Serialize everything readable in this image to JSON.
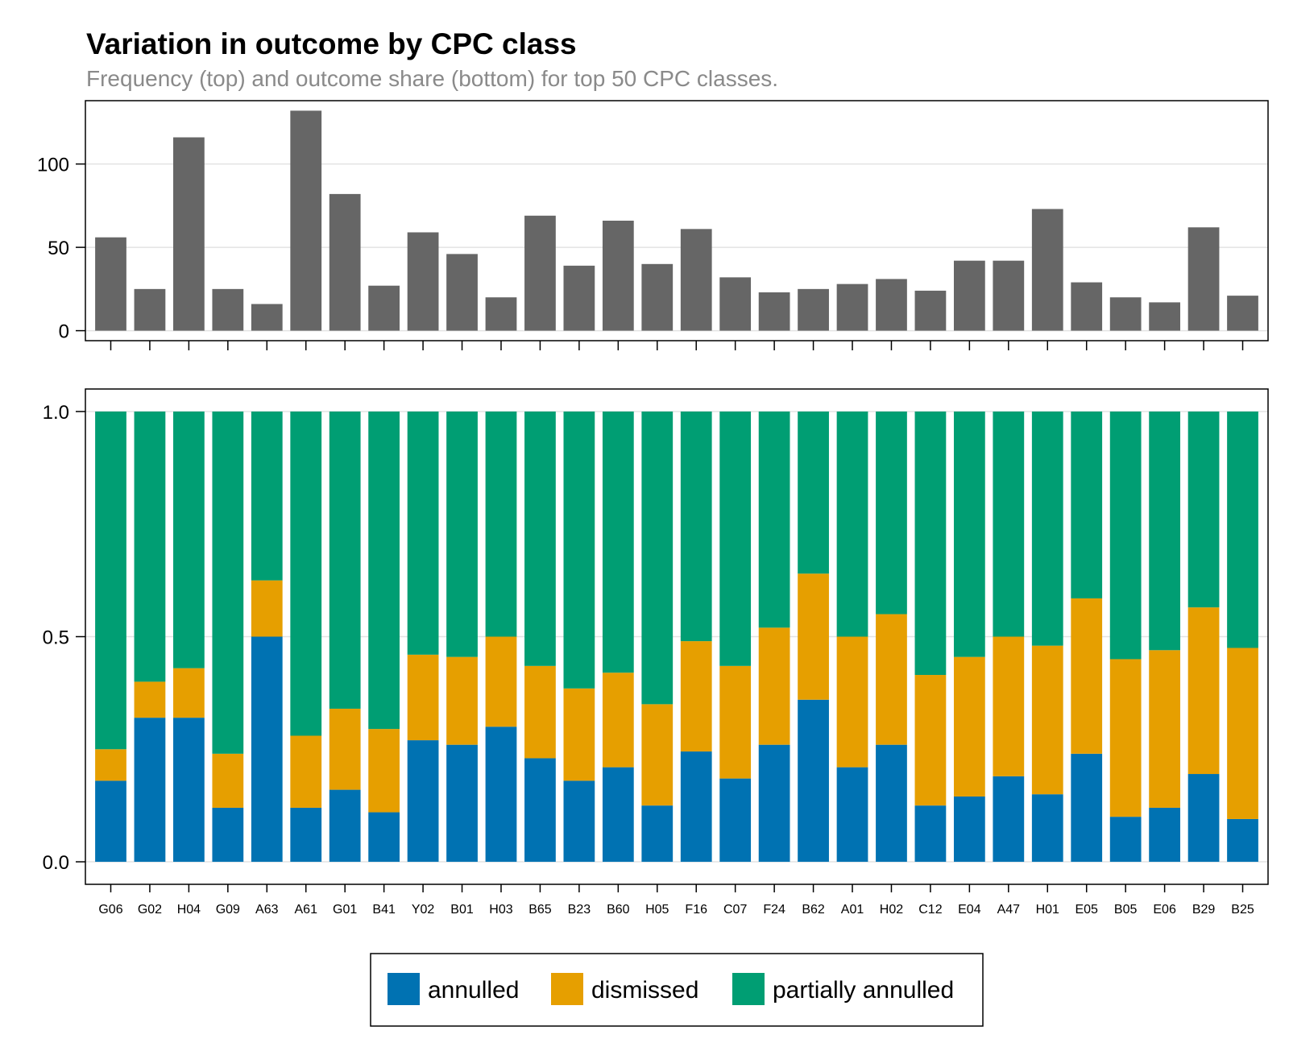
{
  "chart_data": [
    {
      "type": "bar",
      "title": "Variation in outcome by CPC class",
      "subtitle": "Frequency (top) and outcome share (bottom) for top 50 CPC classes.",
      "categories": [
        "G06",
        "G02",
        "H04",
        "G09",
        "A63",
        "A61",
        "G01",
        "B41",
        "Y02",
        "B01",
        "H03",
        "B65",
        "B23",
        "B60",
        "H05",
        "F16",
        "C07",
        "F24",
        "B62",
        "A01",
        "H02",
        "C12",
        "E04",
        "A47",
        "H01",
        "E05",
        "B05",
        "E06",
        "B29",
        "B25"
      ],
      "values": [
        56,
        25,
        116,
        25,
        16,
        132,
        82,
        27,
        59,
        46,
        20,
        69,
        39,
        66,
        40,
        61,
        32,
        23,
        25,
        28,
        31,
        24,
        42,
        42,
        73,
        29,
        20,
        17,
        62,
        21
      ],
      "ylim": [
        -6,
        138
      ],
      "yticks": [
        0,
        50,
        100
      ],
      "grid": true,
      "color": "#666666"
    },
    {
      "type": "bar",
      "stacked": true,
      "categories": [
        "G06",
        "G02",
        "H04",
        "G09",
        "A63",
        "A61",
        "G01",
        "B41",
        "Y02",
        "B01",
        "H03",
        "B65",
        "B23",
        "B60",
        "H05",
        "F16",
        "C07",
        "F24",
        "B62",
        "A01",
        "H02",
        "C12",
        "E04",
        "A47",
        "H01",
        "E05",
        "B05",
        "E06",
        "B29",
        "B25"
      ],
      "series": [
        {
          "name": "annulled",
          "color": "#0072b2",
          "values": [
            0.18,
            0.32,
            0.32,
            0.12,
            0.5,
            0.12,
            0.16,
            0.11,
            0.27,
            0.26,
            0.3,
            0.23,
            0.18,
            0.21,
            0.125,
            0.245,
            0.185,
            0.26,
            0.36,
            0.21,
            0.26,
            0.125,
            0.145,
            0.19,
            0.15,
            0.24,
            0.1,
            0.12,
            0.195,
            0.095
          ]
        },
        {
          "name": "dismissed",
          "color": "#e69f00",
          "values": [
            0.07,
            0.08,
            0.11,
            0.12,
            0.125,
            0.16,
            0.18,
            0.185,
            0.19,
            0.195,
            0.2,
            0.205,
            0.205,
            0.21,
            0.225,
            0.245,
            0.25,
            0.26,
            0.28,
            0.29,
            0.29,
            0.29,
            0.31,
            0.31,
            0.33,
            0.345,
            0.35,
            0.35,
            0.37,
            0.38
          ]
        },
        {
          "name": "partially annulled",
          "color": "#009e73",
          "values": [
            0.75,
            0.6,
            0.57,
            0.76,
            0.375,
            0.72,
            0.66,
            0.705,
            0.54,
            0.545,
            0.5,
            0.565,
            0.615,
            0.58,
            0.65,
            0.51,
            0.565,
            0.48,
            0.36,
            0.5,
            0.45,
            0.585,
            0.545,
            0.5,
            0.52,
            0.415,
            0.55,
            0.53,
            0.435,
            0.525
          ]
        }
      ],
      "ylim": [
        -0.05,
        1.05
      ],
      "yticks": [
        0.0,
        0.5,
        1.0
      ],
      "ytick_labels": [
        "0.0",
        "0.5",
        "1.0"
      ],
      "grid": true,
      "legend": "bottom-center"
    }
  ]
}
